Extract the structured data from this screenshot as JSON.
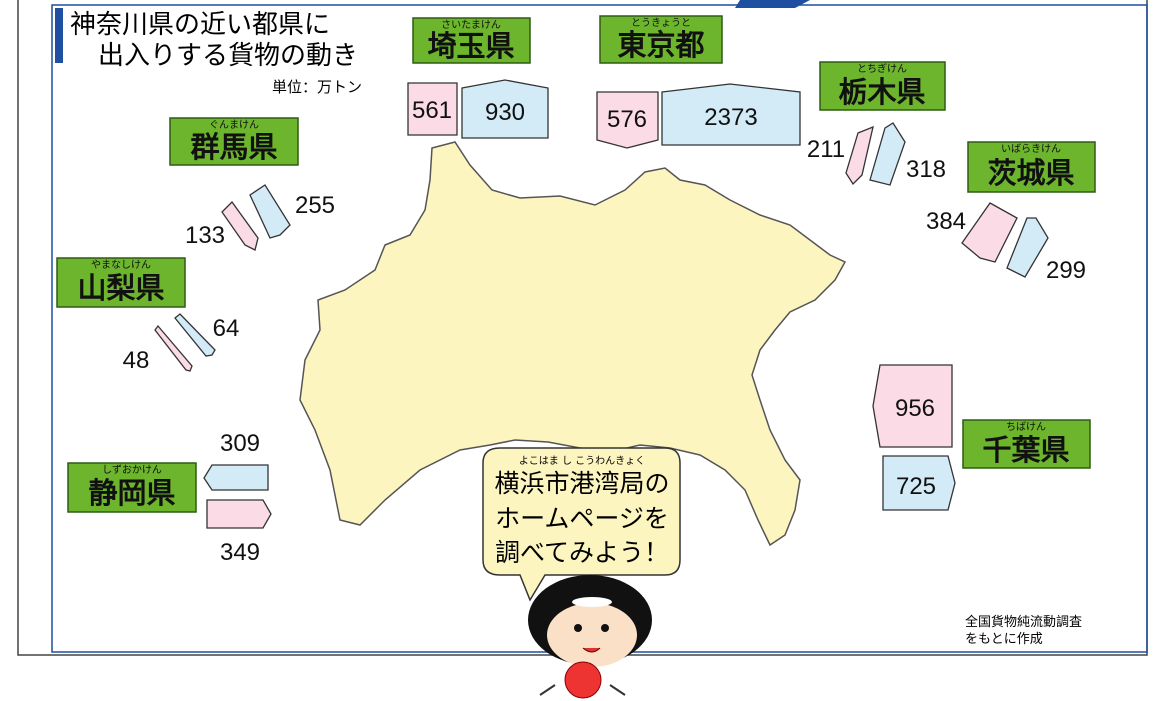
{
  "title": [
    "神奈川県の近い都県に",
    "出入りする貨物の動き"
  ],
  "unit": "単位：万トン",
  "prefectures": [
    {
      "name": "埼玉県",
      "ruby": "さいたまけん",
      "pink": 561,
      "blue": 930
    },
    {
      "name": "東京都",
      "ruby": "とうきょうと",
      "pink": 576,
      "blue": 2373
    },
    {
      "name": "栃木県",
      "ruby": "とちぎけん",
      "pink": 211,
      "blue": 318
    },
    {
      "name": "茨城県",
      "ruby": "いばらきけん",
      "pink": 384,
      "blue": 299
    },
    {
      "name": "千葉県",
      "ruby": "ちばけん",
      "pink": 956,
      "blue": 725
    },
    {
      "name": "群馬県",
      "ruby": "ぐんまけん",
      "pink": 133,
      "blue": 255
    },
    {
      "name": "山梨県",
      "ruby": "やまなしけん",
      "pink": 48,
      "blue": 64
    },
    {
      "name": "静岡県",
      "ruby": "しずおかけん",
      "pink": 349,
      "blue": 309
    }
  ],
  "bubble": {
    "ruby": "よこはま し こうわんきょく",
    "lines": [
      "横浜市港湾局の",
      "ホームページを",
      "調べてみよう！"
    ]
  },
  "source": [
    "全国貨物純流動調査",
    "をもとに作成"
  ]
}
